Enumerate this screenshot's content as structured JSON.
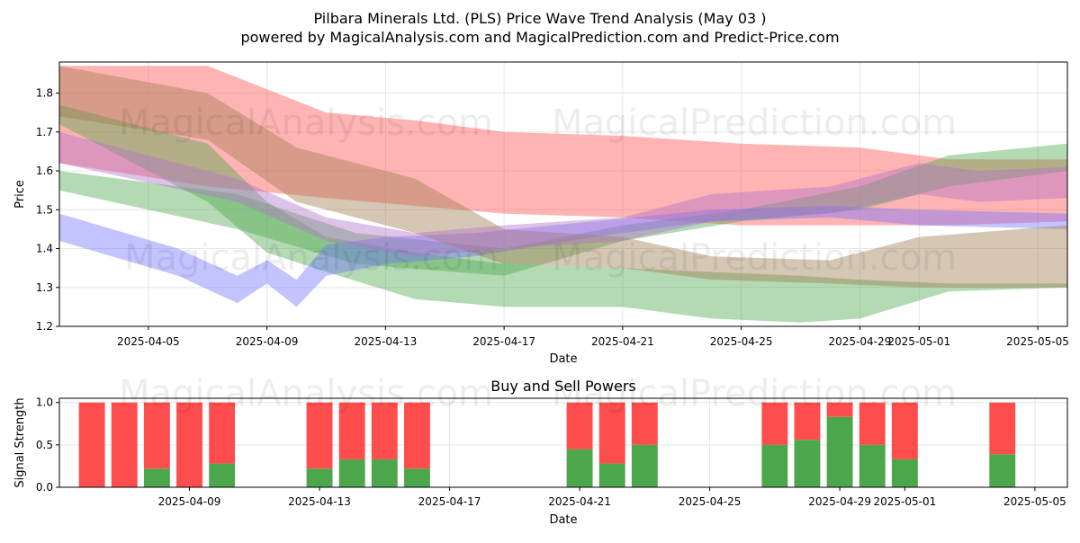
{
  "title_line1": "Pilbara Minerals Ltd. (PLS) Price Wave Trend Analysis (May 03 )",
  "title_line2": "powered by MagicalAnalysis.com and MagicalPrediction.com and Predict-Price.com",
  "watermarks": [
    "MagicalAnalysis.com",
    "MagicalPrediction.com"
  ],
  "colors": {
    "red": "#ff4d4d",
    "green": "#4ca64c",
    "blue": "#6f6fff",
    "brown": "#9e7a4f",
    "purple": "#b070c8"
  },
  "chart_data": [
    {
      "type": "area",
      "xlabel": "Date",
      "ylabel": "Price",
      "ylim": [
        1.2,
        1.88
      ],
      "xlim": [
        "2025-04-02",
        "2025-05-06"
      ],
      "yticks": [
        1.2,
        1.3,
        1.4,
        1.5,
        1.6,
        1.7,
        1.8
      ],
      "xtick_labels": [
        "2025-04-05",
        "2025-04-09",
        "2025-04-13",
        "2025-04-17",
        "2025-04-21",
        "2025-04-25",
        "2025-04-29",
        "2025-05-01",
        "2025-05-05"
      ],
      "grid": true,
      "series": [
        {
          "color": "red",
          "dates": [
            "2025-04-02",
            "2025-04-07",
            "2025-04-11",
            "2025-04-14",
            "2025-04-17",
            "2025-04-21",
            "2025-04-25",
            "2025-04-29",
            "2025-05-02",
            "2025-05-06"
          ],
          "upper": [
            1.87,
            1.87,
            1.75,
            1.73,
            1.7,
            1.69,
            1.67,
            1.66,
            1.63,
            1.63
          ],
          "lower": [
            1.62,
            1.56,
            1.53,
            1.51,
            1.49,
            1.48,
            1.46,
            1.46,
            1.46,
            1.47
          ]
        },
        {
          "color": "green",
          "dates": [
            "2025-04-02",
            "2025-04-07",
            "2025-04-09",
            "2025-04-11",
            "2025-04-14",
            "2025-04-17",
            "2025-04-21",
            "2025-04-24",
            "2025-04-27",
            "2025-04-29",
            "2025-05-02",
            "2025-05-06"
          ],
          "upper": [
            1.77,
            1.67,
            1.52,
            1.43,
            1.39,
            1.36,
            1.35,
            1.34,
            1.33,
            1.32,
            1.31,
            1.31
          ],
          "lower": [
            1.72,
            1.52,
            1.39,
            1.34,
            1.27,
            1.25,
            1.25,
            1.22,
            1.21,
            1.22,
            1.29,
            1.3
          ]
        },
        {
          "color": "green",
          "dates": [
            "2025-04-02",
            "2025-04-08",
            "2025-04-12",
            "2025-04-17",
            "2025-04-21",
            "2025-04-25",
            "2025-04-29",
            "2025-05-02",
            "2025-05-06"
          ],
          "upper": [
            1.6,
            1.54,
            1.44,
            1.4,
            1.46,
            1.5,
            1.56,
            1.64,
            1.67
          ],
          "lower": [
            1.55,
            1.45,
            1.36,
            1.33,
            1.42,
            1.47,
            1.5,
            1.56,
            1.6
          ]
        },
        {
          "color": "blue",
          "dates": [
            "2025-04-02",
            "2025-04-06",
            "2025-04-08",
            "2025-04-09",
            "2025-04-10",
            "2025-04-11",
            "2025-04-13",
            "2025-04-16",
            "2025-04-20",
            "2025-04-24",
            "2025-04-28",
            "2025-05-01",
            "2025-05-06"
          ],
          "upper": [
            1.49,
            1.4,
            1.33,
            1.37,
            1.32,
            1.41,
            1.43,
            1.44,
            1.47,
            1.5,
            1.51,
            1.5,
            1.49
          ],
          "lower": [
            1.42,
            1.33,
            1.26,
            1.31,
            1.25,
            1.33,
            1.36,
            1.38,
            1.43,
            1.47,
            1.48,
            1.46,
            1.45
          ]
        },
        {
          "color": "brown",
          "dates": [
            "2025-04-02",
            "2025-04-07",
            "2025-04-10",
            "2025-04-14",
            "2025-04-17",
            "2025-04-21",
            "2025-04-24",
            "2025-04-28",
            "2025-05-01",
            "2025-05-06"
          ],
          "upper": [
            1.87,
            1.8,
            1.66,
            1.58,
            1.45,
            1.43,
            1.38,
            1.37,
            1.43,
            1.46
          ],
          "lower": [
            1.74,
            1.68,
            1.52,
            1.44,
            1.36,
            1.35,
            1.32,
            1.31,
            1.3,
            1.3
          ]
        },
        {
          "color": "purple",
          "dates": [
            "2025-04-02",
            "2025-04-08",
            "2025-04-11",
            "2025-04-14",
            "2025-04-17",
            "2025-04-21",
            "2025-04-24",
            "2025-04-28",
            "2025-05-01",
            "2025-05-03",
            "2025-05-06"
          ],
          "upper": [
            1.7,
            1.58,
            1.48,
            1.44,
            1.46,
            1.48,
            1.54,
            1.56,
            1.62,
            1.6,
            1.61
          ],
          "lower": [
            1.62,
            1.52,
            1.42,
            1.38,
            1.4,
            1.42,
            1.47,
            1.49,
            1.54,
            1.52,
            1.53
          ]
        }
      ]
    },
    {
      "type": "bar",
      "title": "Buy and Sell Powers",
      "xlabel": "Date",
      "ylabel": "Signal Strength",
      "ylim": [
        0,
        1.05
      ],
      "xlim": [
        "2025-04-05",
        "2025-05-06"
      ],
      "yticks": [
        0.0,
        0.5,
        1.0
      ],
      "xtick_labels": [
        "2025-04-09",
        "2025-04-13",
        "2025-04-17",
        "2025-04-21",
        "2025-04-25",
        "2025-04-29",
        "2025-05-01",
        "2025-05-05"
      ],
      "grid": true,
      "categories": [
        "2025-04-06",
        "2025-04-07",
        "2025-04-08",
        "2025-04-09",
        "2025-04-10",
        "2025-04-13",
        "2025-04-14",
        "2025-04-15",
        "2025-04-16",
        "2025-04-21",
        "2025-04-22",
        "2025-04-23",
        "2025-04-27",
        "2025-04-28",
        "2025-04-29",
        "2025-04-30",
        "2025-05-01",
        "2025-05-04"
      ],
      "series": [
        {
          "color": "green",
          "values": [
            0,
            0,
            0.22,
            0,
            0.28,
            0.22,
            0.33,
            0.33,
            0.22,
            0.45,
            0.28,
            0.5,
            0.5,
            0.56,
            0.83,
            0.5,
            0.33,
            0.39
          ]
        },
        {
          "color": "red",
          "values": [
            1,
            1,
            0.78,
            1,
            0.72,
            0.78,
            0.67,
            0.67,
            0.78,
            0.55,
            0.72,
            0.5,
            0.5,
            0.44,
            0.17,
            0.5,
            0.67,
            0.61
          ]
        }
      ]
    }
  ]
}
